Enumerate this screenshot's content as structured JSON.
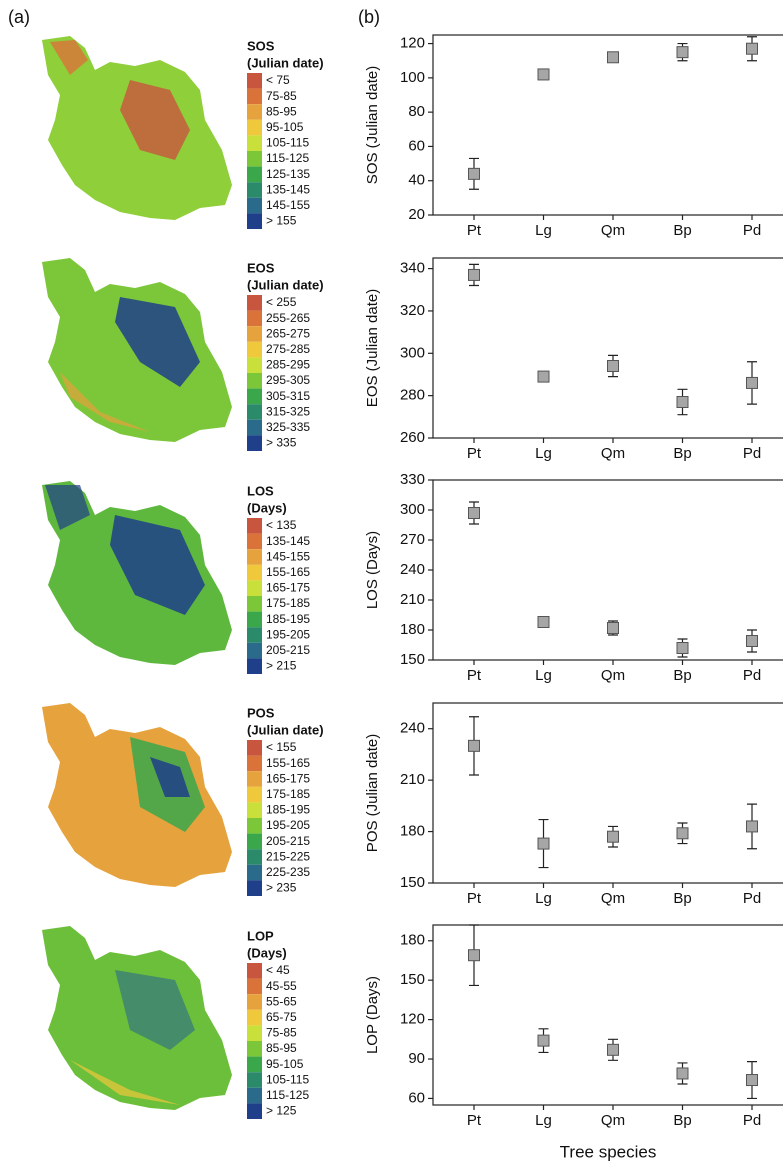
{
  "panel_labels": [
    "(a)",
    "(b)"
  ],
  "maps": [
    {
      "title": "SOS",
      "unit": "(Julian date)",
      "legend": [
        "< 75",
        "75-85",
        "85-95",
        "95-105",
        "105-115",
        "115-125",
        "125-135",
        "135-145",
        "145-155",
        "> 155"
      ]
    },
    {
      "title": "EOS",
      "unit": "(Julian date)",
      "legend": [
        "< 255",
        "255-265",
        "265-275",
        "275-285",
        "285-295",
        "295-305",
        "305-315",
        "315-325",
        "325-335",
        "> 335"
      ]
    },
    {
      "title": "LOS",
      "unit": "(Days)",
      "legend": [
        "< 135",
        "135-145",
        "145-155",
        "155-165",
        "165-175",
        "175-185",
        "185-195",
        "195-205",
        "205-215",
        "> 215"
      ]
    },
    {
      "title": "POS",
      "unit": "(Julian date)",
      "legend": [
        "< 155",
        "155-165",
        "165-175",
        "175-185",
        "185-195",
        "195-205",
        "205-215",
        "215-225",
        "225-235",
        "> 235"
      ]
    },
    {
      "title": "LOP",
      "unit": "(Days)",
      "legend": [
        "< 45",
        "45-55",
        "55-65",
        "65-75",
        "75-85",
        "85-95",
        "95-105",
        "105-115",
        "115-125",
        "> 125"
      ]
    }
  ],
  "legend_colors": [
    "#c8553d",
    "#d9733a",
    "#e6a23c",
    "#f0c83c",
    "#c9e03a",
    "#7cc63a",
    "#3aa84a",
    "#2a8a6a",
    "#2a6a8a",
    "#1f3f8a"
  ],
  "chart_data": [
    {
      "type": "errorbar",
      "y_label": "SOS (Julian date)",
      "categories": [
        "Pt",
        "Lg",
        "Qm",
        "Bp",
        "Pd"
      ],
      "values": [
        44,
        102,
        112,
        115,
        117
      ],
      "errors": [
        9,
        3,
        3,
        5,
        7
      ],
      "color": "#a6a6a6",
      "ylim": [
        20,
        125
      ],
      "yticks": [
        20,
        40,
        60,
        80,
        100,
        120
      ]
    },
    {
      "type": "errorbar",
      "y_label": "EOS (Julian date)",
      "categories": [
        "Pt",
        "Lg",
        "Qm",
        "Bp",
        "Pd"
      ],
      "values": [
        337,
        289,
        294,
        277,
        286
      ],
      "errors": [
        5,
        2,
        5,
        6,
        10
      ],
      "color": "#a6a6a6",
      "ylim": [
        260,
        345
      ],
      "yticks": [
        260,
        280,
        300,
        320,
        340
      ]
    },
    {
      "type": "errorbar",
      "y_label": "LOS (Days)",
      "categories": [
        "Pt",
        "Lg",
        "Qm",
        "Bp",
        "Pd"
      ],
      "values": [
        297,
        188,
        182,
        162,
        169
      ],
      "errors": [
        11,
        3,
        7,
        9,
        11
      ],
      "color": "#a6a6a6",
      "ylim": [
        150,
        330
      ],
      "yticks": [
        150,
        180,
        210,
        240,
        270,
        300,
        330
      ]
    },
    {
      "type": "errorbar",
      "y_label": "POS (Julian date)",
      "categories": [
        "Pt",
        "Lg",
        "Qm",
        "Bp",
        "Pd"
      ],
      "values": [
        230,
        173,
        177,
        179,
        183
      ],
      "errors": [
        17,
        14,
        6,
        6,
        13
      ],
      "color": "#a6a6a6",
      "ylim": [
        150,
        255
      ],
      "yticks": [
        150,
        180,
        210,
        240
      ]
    },
    {
      "type": "errorbar",
      "y_label": "LOP (Days)",
      "x_label": "Tree species",
      "categories": [
        "Pt",
        "Lg",
        "Qm",
        "Bp",
        "Pd"
      ],
      "values": [
        169,
        104,
        97,
        79,
        74
      ],
      "errors": [
        23,
        9,
        8,
        8,
        14
      ],
      "color": "#a6a6a6",
      "ylim": [
        55,
        192
      ],
      "yticks": [
        60,
        90,
        120,
        150,
        180
      ]
    }
  ]
}
